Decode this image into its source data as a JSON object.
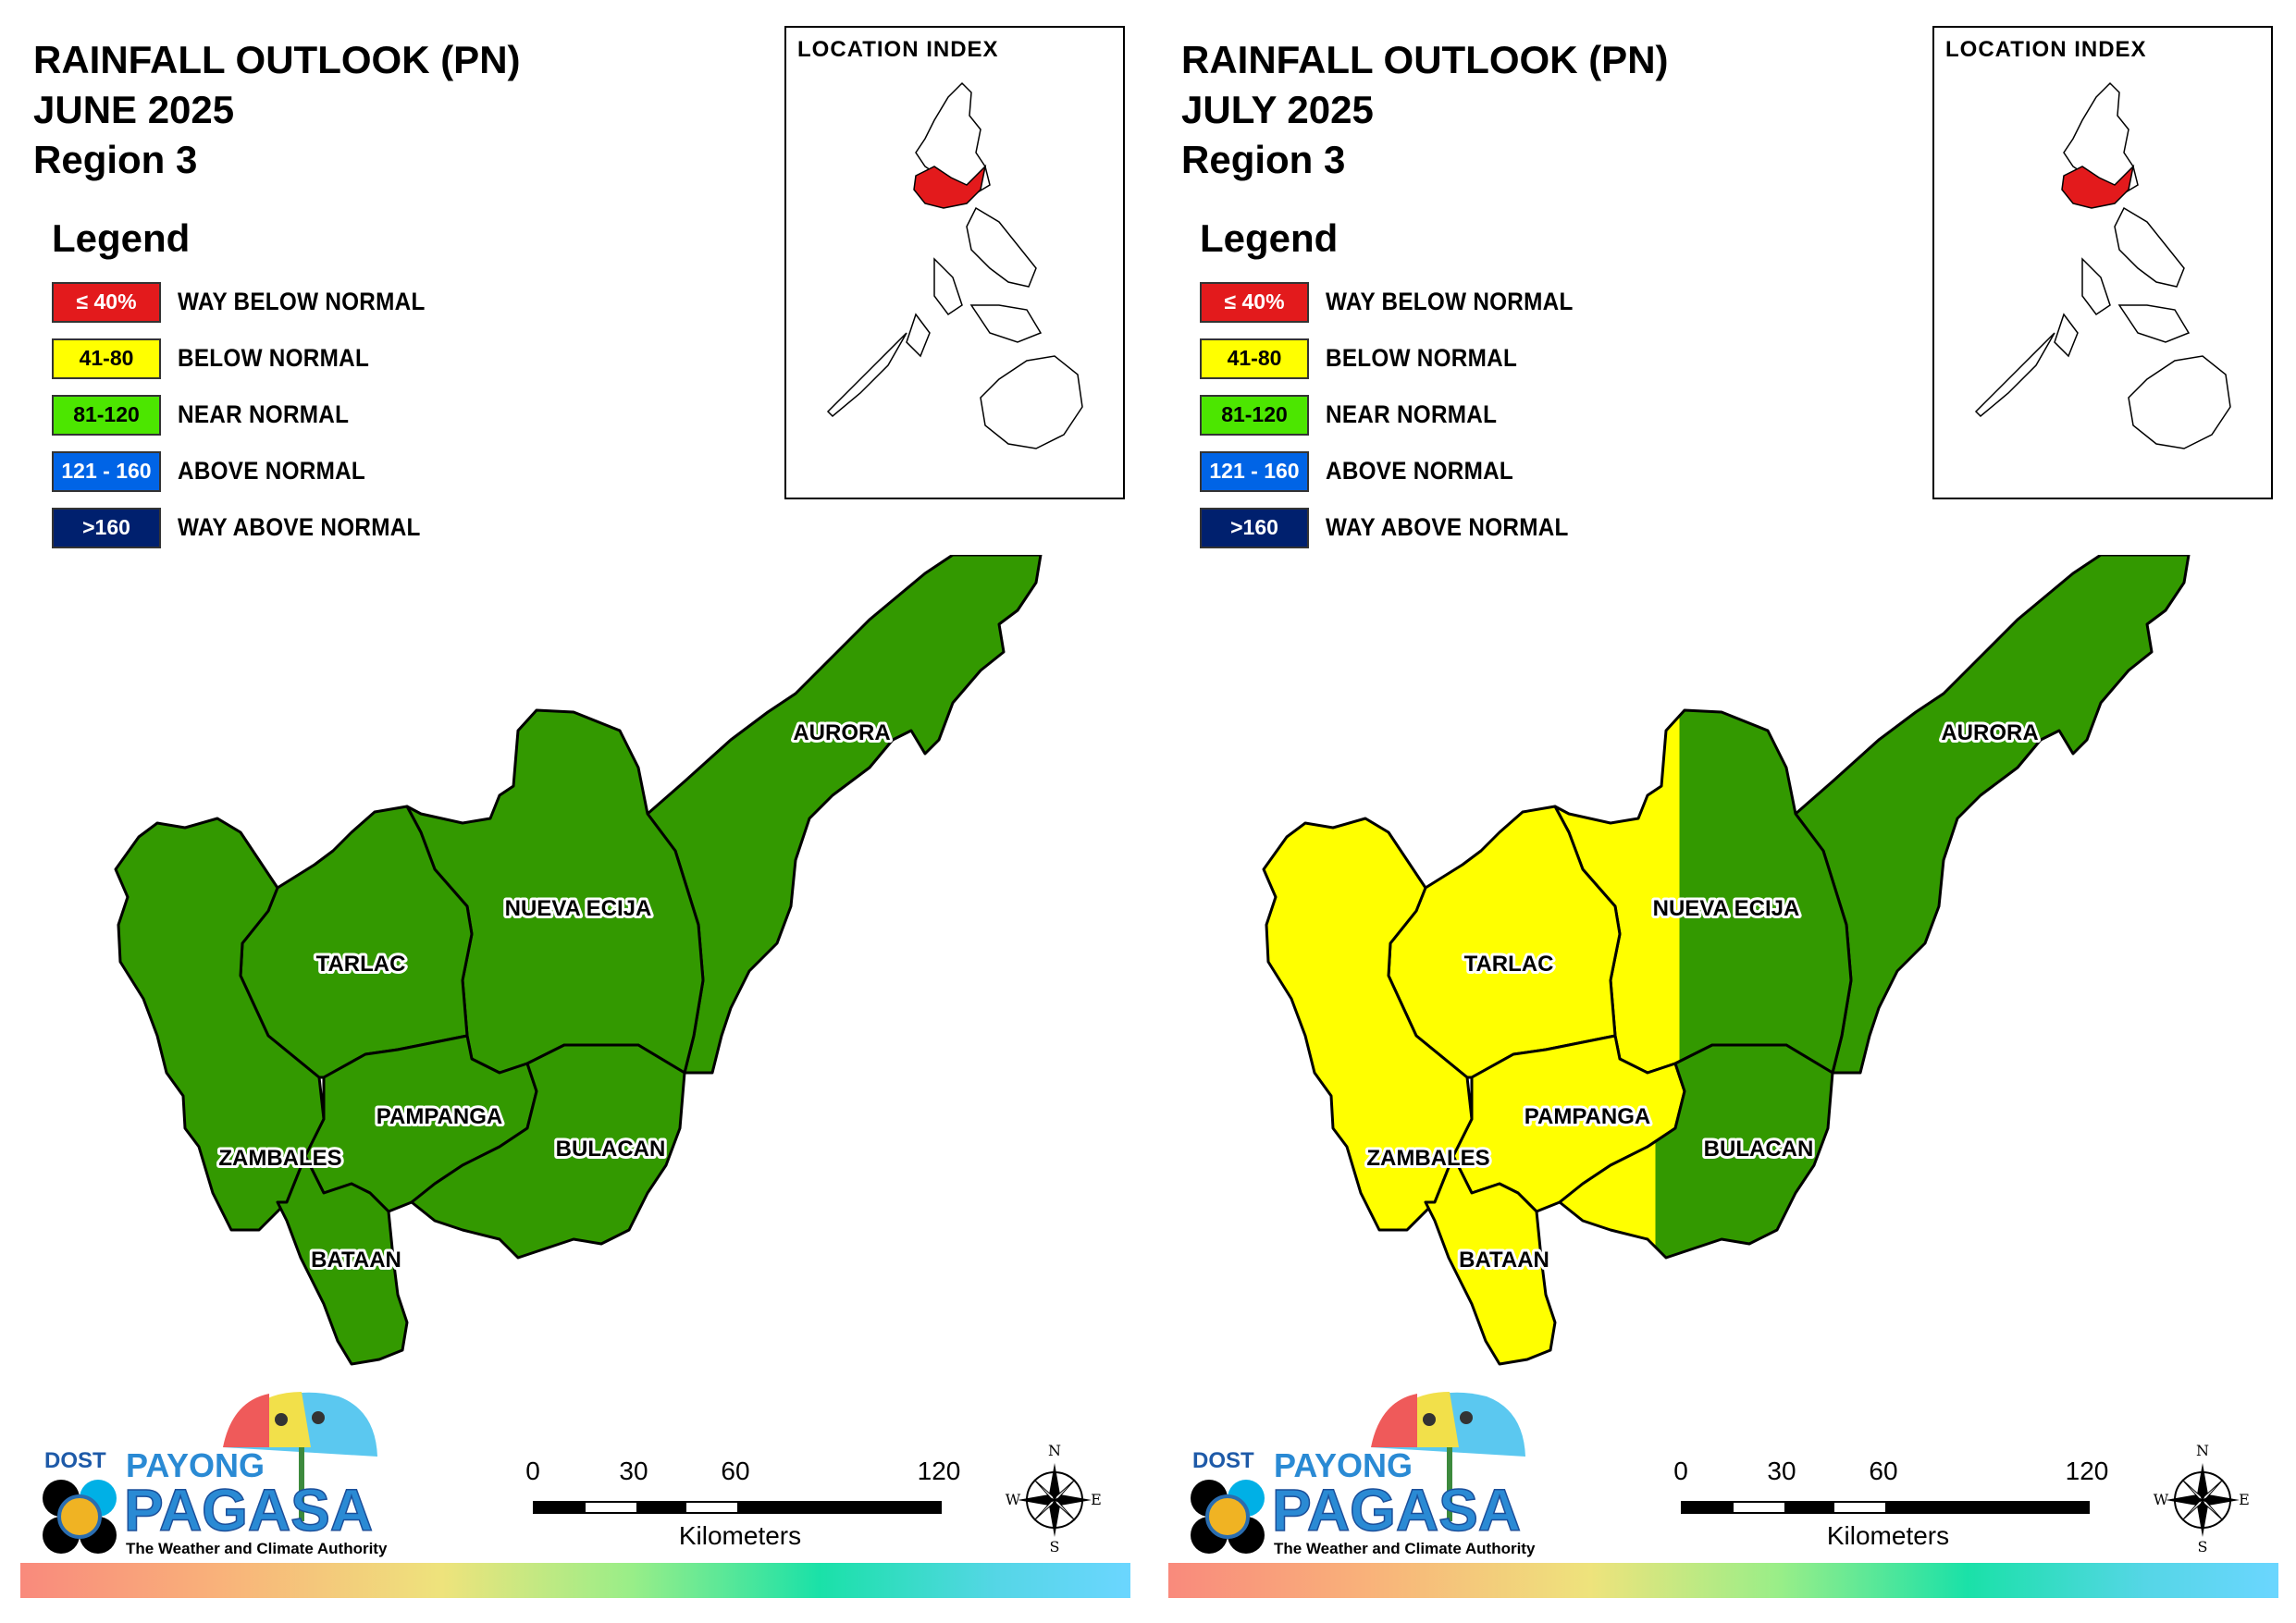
{
  "legend": {
    "title": "Legend",
    "items": [
      {
        "range": "≤ 40%",
        "label": "WAY BELOW NORMAL",
        "color": "#e31a1c",
        "text_color": "#ffffff"
      },
      {
        "range": "41-80",
        "label": "BELOW NORMAL",
        "color": "#ffff00",
        "text_color": "#000000"
      },
      {
        "range": "81-120",
        "label": "NEAR NORMAL",
        "color": "#4ce600",
        "text_color": "#000000"
      },
      {
        "range": "121 - 160",
        "label": "ABOVE NORMAL",
        "color": "#0064e6",
        "text_color": "#ffffff"
      },
      {
        "range": ">160",
        "label": "WAY ABOVE NORMAL",
        "color": "#00206e",
        "text_color": "#ffffff"
      }
    ]
  },
  "inset": {
    "title": "LOCATION INDEX",
    "highlight_color": "#e31a1c"
  },
  "provinces": [
    "AURORA",
    "NUEVA ECIJA",
    "TARLAC",
    "PAMPANGA",
    "BULACAN",
    "ZAMBALES",
    "BATAAN"
  ],
  "map_colors": {
    "green": "#339900",
    "yellow": "#ffff00"
  },
  "panels": [
    {
      "id": "june",
      "title_lines": [
        "RAINFALL OUTLOOK (PN)",
        "JUNE 2025",
        "Region 3"
      ],
      "province_category": {
        "AURORA": "NEAR NORMAL",
        "NUEVA ECIJA": "NEAR NORMAL",
        "TARLAC": "NEAR NORMAL",
        "PAMPANGA": "NEAR NORMAL",
        "BULACAN": "NEAR NORMAL",
        "ZAMBALES": "NEAR NORMAL",
        "BATAAN": "NEAR NORMAL"
      }
    },
    {
      "id": "july",
      "title_lines": [
        "RAINFALL OUTLOOK (PN)",
        "JULY 2025",
        "Region 3"
      ],
      "province_category": {
        "AURORA": "NEAR NORMAL",
        "NUEVA ECIJA": "BELOW NORMAL (WEST) / NEAR NORMAL (EAST)",
        "TARLAC": "BELOW NORMAL",
        "PAMPANGA": "BELOW NORMAL",
        "BULACAN": "BELOW NORMAL (WEST) / NEAR NORMAL (EAST)",
        "ZAMBALES": "BELOW NORMAL",
        "BATAAN": "BELOW NORMAL"
      }
    }
  ],
  "scale": {
    "ticks": [
      "0",
      "30",
      "60",
      "120"
    ],
    "unit": "Kilometers"
  },
  "compass": {
    "n": "N",
    "e": "E",
    "s": "S",
    "w": "W"
  },
  "logo": {
    "dost": "DOST",
    "payong": "PAYONG",
    "pagasa": "PAGASA",
    "tagline": "The Weather and Climate Authority"
  }
}
